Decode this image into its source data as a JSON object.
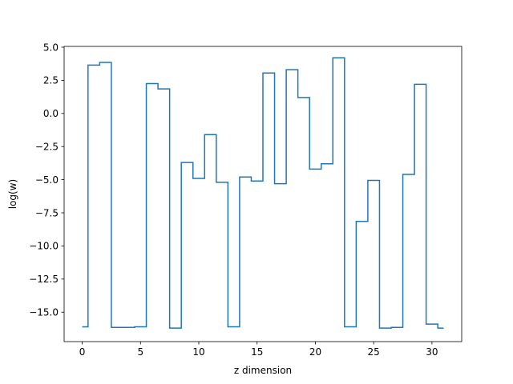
{
  "chart_data": {
    "type": "line",
    "drawstyle": "steps-mid",
    "xlabel": "z dimension",
    "ylabel": "log(w)",
    "xlim": [
      -1.55,
      32.55
    ],
    "ylim": [
      -17.22,
      5.06
    ],
    "x": [
      0,
      1,
      2,
      3,
      4,
      5,
      6,
      7,
      8,
      9,
      10,
      11,
      12,
      13,
      14,
      15,
      16,
      17,
      18,
      19,
      20,
      21,
      22,
      23,
      24,
      25,
      26,
      27,
      28,
      29,
      30,
      31
    ],
    "series": [
      {
        "color": "#1f77b4",
        "values": [
          -16.1,
          3.65,
          3.85,
          -16.15,
          -16.15,
          -16.1,
          2.25,
          1.85,
          -16.2,
          -3.7,
          -4.9,
          -1.6,
          -5.2,
          -16.1,
          -4.8,
          -5.1,
          3.05,
          -5.3,
          3.3,
          1.2,
          -4.2,
          -3.8,
          4.2,
          -16.1,
          -8.15,
          -5.05,
          -16.2,
          -16.15,
          -4.6,
          2.2,
          -15.9,
          -16.2
        ]
      }
    ],
    "xticks": [
      0,
      5,
      10,
      15,
      20,
      25,
      30
    ],
    "xtick_labels": [
      "0",
      "5",
      "10",
      "15",
      "20",
      "25",
      "30"
    ],
    "yticks": [
      5.0,
      2.5,
      0.0,
      -2.5,
      -5.0,
      -7.5,
      -10.0,
      -12.5,
      -15.0
    ],
    "ytick_labels": [
      "5.0",
      "2.5",
      "0.0",
      "−2.5",
      "−5.0",
      "−7.5",
      "−10.0",
      "−12.5",
      "−15.0"
    ],
    "grid": false,
    "legend": "none"
  }
}
